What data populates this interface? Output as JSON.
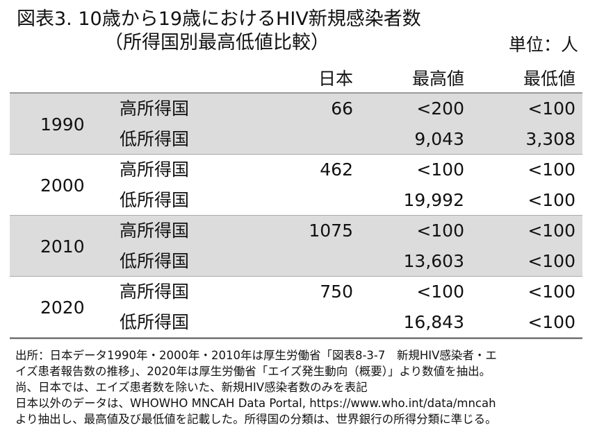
{
  "header": {
    "title": "図表3.  10歳から19歳におけるHIV新規感染者数",
    "subtitle": "（所得国別最高低値比較）",
    "unit": "単位：人"
  },
  "table": {
    "columns": [
      "日本",
      "最高値",
      "最低値"
    ],
    "groups": [
      {
        "year": "1990",
        "rows": [
          {
            "income": "高所得国",
            "japan": "66",
            "max": "<200",
            "min": "<100"
          },
          {
            "income": "低所得国",
            "max": "9,043",
            "min": "3,308"
          }
        ]
      },
      {
        "year": "2000",
        "rows": [
          {
            "income": "高所得国",
            "japan": "462",
            "max": "<100",
            "min": "<100"
          },
          {
            "income": "低所得国",
            "max": "19,992",
            "min": "<100"
          }
        ]
      },
      {
        "year": "2010",
        "rows": [
          {
            "income": "高所得国",
            "japan": "1075",
            "max": "<100",
            "min": "<100"
          },
          {
            "income": "低所得国",
            "max": "13,603",
            "min": "<100"
          }
        ]
      },
      {
        "year": "2020",
        "rows": [
          {
            "income": "高所得国",
            "japan": "750",
            "max": "<100",
            "min": "<100"
          },
          {
            "income": "低所得国",
            "max": "16,843",
            "min": "<100"
          }
        ]
      }
    ]
  },
  "notes": [
    "出所：日本データ1990年・2000年・2010年は厚生労働省「図表8-3-7　新規HIV感染者・エ",
    "イズ患者報告数の推移」、2020年は厚生労働省「エイズ発生動向（概要）」より数値を抽出。",
    "尚、日本では、エイズ患者数を除いた、新規HIV感染者数のみを表記",
    "日本以外のデータは、WHOWHO MNCAH Data Portal, https://www.who.int/data/mncah",
    "より抽出し、最高値及び最低値を記載した。所得国の分類は、世界銀行の所得分類に準じる。"
  ]
}
